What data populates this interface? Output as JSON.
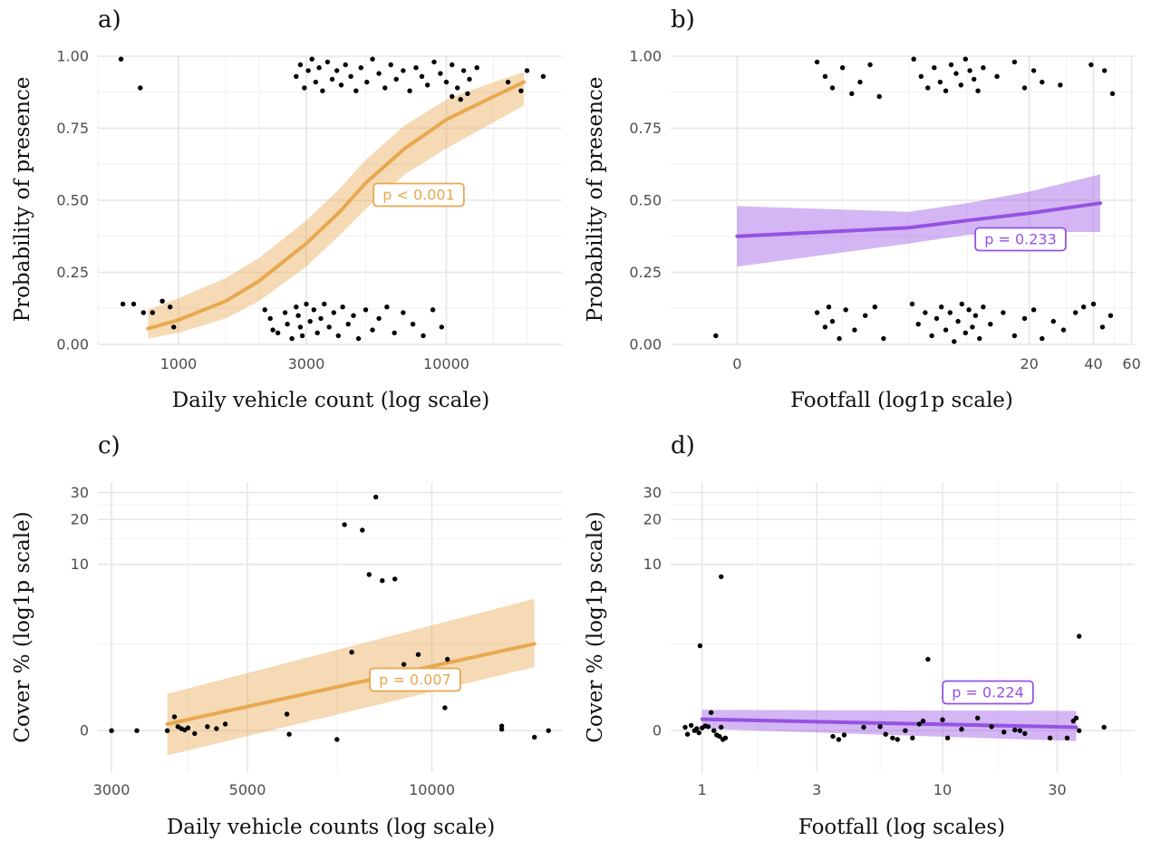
{
  "colors": {
    "orange": "#E8A84F",
    "purple": "#9652E3",
    "points": "#000000"
  },
  "chart_data": [
    {
      "panel": "a)",
      "type": "scatter",
      "trend": "logistic",
      "xlabel": "Daily vehicle count (log scale)",
      "ylabel": "Probability of presence",
      "xscale": "log10",
      "xlim": [
        500,
        27000
      ],
      "ylim": [
        0,
        1
      ],
      "xticks": [
        1000,
        3000,
        10000
      ],
      "xtick_labels": [
        "1000",
        "3000",
        "10000"
      ],
      "xminor": [
        500,
        1500,
        2000,
        5000,
        15000,
        20000
      ],
      "yticks": [
        0,
        0.25,
        0.5,
        0.75,
        1
      ],
      "ytick_labels": [
        "0.00",
        "0.25",
        "0.50",
        "0.75",
        "1.00"
      ],
      "color": "orange",
      "pvalue": "p < 0.001",
      "fit": {
        "x": [
          770,
          1000,
          1500,
          2000,
          3000,
          4000,
          5000,
          7000,
          10000,
          15000,
          19500
        ],
        "y": [
          0.055,
          0.085,
          0.15,
          0.22,
          0.35,
          0.46,
          0.56,
          0.68,
          0.78,
          0.86,
          0.91
        ]
      },
      "band_lower": [
        0.02,
        0.04,
        0.09,
        0.15,
        0.27,
        0.38,
        0.47,
        0.59,
        0.68,
        0.77,
        0.83
      ],
      "band_upper": [
        0.12,
        0.16,
        0.23,
        0.3,
        0.43,
        0.54,
        0.64,
        0.76,
        0.85,
        0.91,
        0.945
      ],
      "points_x": [
        610,
        720,
        620,
        680,
        740,
        800,
        870,
        930,
        960,
        2100,
        2200,
        2250,
        2350,
        2500,
        2550,
        2650,
        2750,
        2800,
        2850,
        2900,
        3000,
        3100,
        3200,
        3300,
        3400,
        3500,
        3650,
        3800,
        3950,
        4100,
        4300,
        4500,
        4700,
        5000,
        5300,
        5600,
        6000,
        6400,
        6900,
        7500,
        8200,
        8900,
        9600,
        2750,
        2850,
        2950,
        3050,
        3150,
        3250,
        3350,
        3450,
        3600,
        3750,
        3900,
        4050,
        4200,
        4400,
        4600,
        4800,
        5050,
        5300,
        5600,
        5900,
        6200,
        6500,
        6900,
        7300,
        7700,
        8100,
        8500,
        9000,
        9500,
        10000,
        10500,
        11000,
        11600,
        12200,
        13000,
        17000,
        19000,
        20000,
        23000,
        10500,
        11300,
        12000
      ],
      "points_y": [
        0.99,
        0.89,
        0.14,
        0.14,
        0.11,
        0.11,
        0.15,
        0.13,
        0.06,
        0.12,
        0.09,
        0.05,
        0.04,
        0.11,
        0.07,
        0.02,
        0.13,
        0.1,
        0.06,
        0.03,
        0.14,
        0.08,
        0.12,
        0.04,
        0.09,
        0.14,
        0.06,
        0.11,
        0.03,
        0.13,
        0.07,
        0.1,
        0.02,
        0.12,
        0.05,
        0.09,
        0.13,
        0.04,
        0.11,
        0.07,
        0.03,
        0.12,
        0.06,
        0.93,
        0.97,
        0.89,
        0.95,
        0.99,
        0.91,
        0.96,
        0.88,
        0.98,
        0.92,
        0.95,
        0.9,
        0.97,
        0.93,
        0.88,
        0.96,
        0.91,
        0.99,
        0.94,
        0.89,
        0.97,
        0.92,
        0.95,
        0.88,
        0.96,
        0.93,
        0.9,
        0.98,
        0.94,
        0.91,
        0.97,
        0.89,
        0.95,
        0.92,
        0.96,
        0.91,
        0.88,
        0.95,
        0.93,
        0.86,
        0.85,
        0.87
      ]
    },
    {
      "panel": "b)",
      "type": "scatter",
      "trend": "logistic",
      "xlabel": "Footfall (log1p scale)",
      "ylabel": "Probability of presence",
      "xscale": "log1p",
      "xlim": [
        -0.5,
        62
      ],
      "ylim": [
        0,
        1
      ],
      "xticks": [
        0,
        20,
        40,
        60
      ],
      "xtick_labels": [
        "0",
        "20",
        "40",
        "60"
      ],
      "xminor": [
        2,
        5,
        10,
        30,
        50
      ],
      "yticks": [
        0,
        0.25,
        0.5,
        0.75,
        1
      ],
      "ytick_labels": [
        "0.00",
        "0.25",
        "0.50",
        "0.75",
        "1.00"
      ],
      "color": "purple",
      "pvalue": "p = 0.233",
      "fit": {
        "x": [
          0,
          5,
          10,
          20,
          43
        ],
        "y": [
          0.375,
          0.405,
          0.43,
          0.455,
          0.49
        ]
      },
      "band_lower": [
        0.27,
        0.35,
        0.38,
        0.39,
        0.39
      ],
      "band_upper": [
        0.48,
        0.46,
        0.49,
        0.53,
        0.59
      ],
      "points_x": [
        -0.2,
        1.3,
        1.5,
        1.6,
        1.7,
        1.9,
        2.1,
        2.4,
        2.8,
        3.2,
        3.6,
        5.2,
        5.6,
        6.1,
        6.6,
        7.0,
        7.4,
        7.8,
        8.2,
        8.6,
        9.0,
        9.4,
        9.8,
        10.2,
        10.6,
        11.0,
        11.5,
        12.0,
        13.0,
        15.0,
        17.0,
        19.0,
        21.0,
        23.0,
        26.0,
        29.0,
        33.0,
        36.0,
        40.0,
        44.0,
        48.0,
        1.3,
        1.5,
        1.7,
        2.0,
        2.3,
        2.6,
        3.0,
        3.4,
        5.3,
        5.8,
        6.3,
        6.8,
        7.3,
        7.8,
        8.3,
        8.8,
        9.3,
        9.8,
        10.3,
        10.8,
        11.3,
        12.0,
        14.0,
        17.0,
        19.0,
        21.0,
        23.0,
        28.0,
        39.0,
        45.0,
        49.0
      ],
      "points_y": [
        0.03,
        0.11,
        0.06,
        0.13,
        0.08,
        0.02,
        0.12,
        0.05,
        0.1,
        0.13,
        0.02,
        0.14,
        0.07,
        0.11,
        0.03,
        0.09,
        0.13,
        0.05,
        0.11,
        0.01,
        0.08,
        0.14,
        0.04,
        0.12,
        0.06,
        0.1,
        0.02,
        0.13,
        0.07,
        0.11,
        0.03,
        0.09,
        0.12,
        0.02,
        0.08,
        0.05,
        0.11,
        0.13,
        0.14,
        0.06,
        0.1,
        0.98,
        0.93,
        0.89,
        0.96,
        0.87,
        0.91,
        0.97,
        0.86,
        0.99,
        0.93,
        0.89,
        0.96,
        0.91,
        0.88,
        0.97,
        0.94,
        0.9,
        0.99,
        0.95,
        0.92,
        0.88,
        0.96,
        0.93,
        0.98,
        0.89,
        0.95,
        0.91,
        0.9,
        0.97,
        0.95,
        0.87
      ]
    },
    {
      "panel": "c)",
      "type": "scatter",
      "trend": "linear",
      "xlabel": "Daily vehicle counts (log scale)",
      "ylabel": "Cover % (log1p scale)",
      "xscale": "log10",
      "yscale": "log1p",
      "xlim": [
        2850,
        16300
      ],
      "ylim": [
        -0.45,
        35
      ],
      "xticks": [
        3000,
        5000,
        10000
      ],
      "xtick_labels": [
        "3000",
        "5000",
        "10000"
      ],
      "xminor": [
        4000,
        7000
      ],
      "yticks": [
        0,
        10,
        20,
        30
      ],
      "ytick_labels": [
        "0",
        "10",
        "20",
        "30"
      ],
      "yminor": [
        2.5,
        15,
        25
      ],
      "color": "orange",
      "pvalue": "p = 0.007",
      "fit": {
        "x": [
          3700,
          14700
        ],
        "y": [
          0.1,
          2.5
        ]
      },
      "band_lower": [
        -0.3,
        1.5
      ],
      "band_upper": [
        0.7,
        5.7
      ],
      "points_x": [
        3000,
        3300,
        3700,
        3800,
        3850,
        3900,
        3950,
        4000,
        4100,
        4300,
        4450,
        4600,
        5800,
        5850,
        7000,
        7200,
        7400,
        7700,
        7900,
        8100,
        8300,
        8700,
        9000,
        9500,
        10500,
        10600,
        13000,
        13000,
        14700,
        15500
      ],
      "points_y": [
        0,
        0,
        0,
        0.22,
        0.06,
        0.03,
        0.01,
        0.04,
        -0.04,
        0.06,
        0.03,
        0.1,
        0.27,
        -0.05,
        -0.12,
        18.5,
        2.1,
        17,
        8.5,
        28,
        7.7,
        7.9,
        1.6,
        2.0,
        0.39,
        1.8,
        0.07,
        0.02,
        -0.09,
        0
      ]
    },
    {
      "panel": "d)",
      "type": "scatter",
      "trend": "linear",
      "xlabel": "Footfall (log scales)",
      "ylabel": "Cover % (log1p scale)",
      "xscale": "log10",
      "yscale": "log1p",
      "xlim": [
        0.74,
        63
      ],
      "ylim": [
        -0.45,
        35
      ],
      "xticks": [
        1,
        3,
        10,
        30
      ],
      "xtick_labels": [
        "1",
        "3",
        "10",
        "30"
      ],
      "xminor": [
        1.7,
        5.5,
        17,
        55
      ],
      "yticks": [
        0,
        10,
        20,
        30
      ],
      "ytick_labels": [
        "0",
        "10",
        "20",
        "30"
      ],
      "yminor": [
        2.5,
        15,
        25
      ],
      "color": "purple",
      "pvalue": "p = 0.224",
      "fit": {
        "x": [
          1,
          36
        ],
        "y": [
          0.18,
          0.05
        ]
      },
      "band_lower": [
        0.03,
        -0.14
      ],
      "band_upper": [
        0.35,
        0.33
      ],
      "points_x": [
        0.85,
        0.87,
        0.9,
        0.93,
        0.95,
        0.97,
        1.0,
        1.03,
        1.06,
        1.09,
        1.12,
        1.15,
        1.18,
        1.2,
        1.22,
        1.25,
        0.98,
        1.2,
        3.5,
        3.7,
        3.9,
        4.7,
        5.5,
        5.8,
        6.2,
        6.5,
        7.0,
        7.5,
        8.0,
        8.3,
        10.0,
        10.5,
        12,
        14,
        16,
        18,
        20,
        21,
        22,
        28,
        33,
        35,
        36,
        37,
        47,
        8.7,
        37
      ],
      "points_y": [
        0.05,
        -0.05,
        0.08,
        0.0,
        0.03,
        -0.03,
        0.04,
        0.07,
        0.06,
        0.3,
        0.0,
        -0.06,
        -0.08,
        0.05,
        -0.12,
        -0.1,
        2.4,
        8.2,
        -0.08,
        -0.12,
        -0.06,
        0.05,
        0.06,
        -0.05,
        -0.1,
        -0.12,
        0.0,
        -0.1,
        0.1,
        0.15,
        0.17,
        -0.1,
        0.02,
        0.2,
        0.06,
        -0.02,
        0.01,
        0.0,
        -0.04,
        -0.1,
        -0.1,
        0.15,
        0.2,
        2.9,
        0.05,
        1.8,
        0.0
      ]
    }
  ]
}
